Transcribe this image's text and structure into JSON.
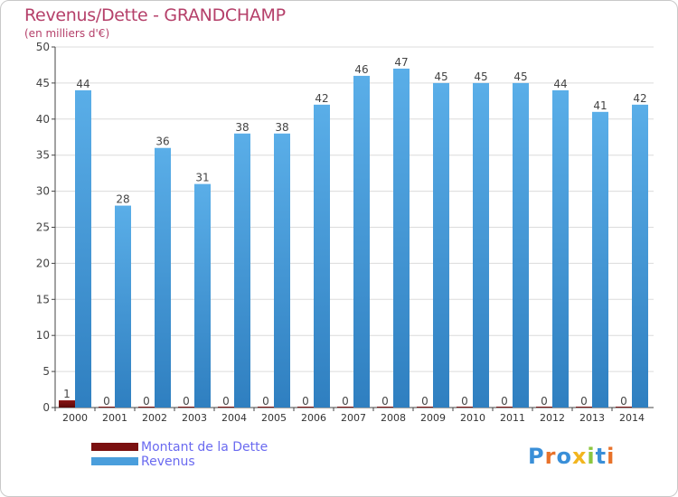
{
  "chart_data": {
    "type": "bar",
    "title": "Revenus/Dette - GRANDCHAMP",
    "subtitle": "(en milliers d'€)",
    "categories": [
      "2000",
      "2001",
      "2002",
      "2003",
      "2004",
      "2005",
      "2006",
      "2007",
      "2008",
      "2009",
      "2010",
      "2011",
      "2012",
      "2013",
      "2014"
    ],
    "series": [
      {
        "name": "Montant de la Dette",
        "color": "#7a1010",
        "values": [
          1,
          0,
          0,
          0,
          0,
          0,
          0,
          0,
          0,
          0,
          0,
          0,
          0,
          0,
          0
        ]
      },
      {
        "name": "Revenus",
        "color": "#4a9edc",
        "values": [
          44,
          28,
          36,
          31,
          38,
          38,
          42,
          46,
          47,
          45,
          45,
          45,
          44,
          41,
          42
        ]
      }
    ],
    "ylim": [
      0,
      50
    ],
    "yticks": [
      0,
      5,
      10,
      15,
      20,
      25,
      30,
      35,
      40,
      45,
      50
    ],
    "grid": true,
    "legend_position": "bottom-left"
  },
  "logo": {
    "text": "Proxiti",
    "letter_colors": [
      "#3a8fd8",
      "#e8722a",
      "#3a8fd8",
      "#f2b51e",
      "#8cc63f",
      "#3a8fd8",
      "#e8722a"
    ]
  }
}
